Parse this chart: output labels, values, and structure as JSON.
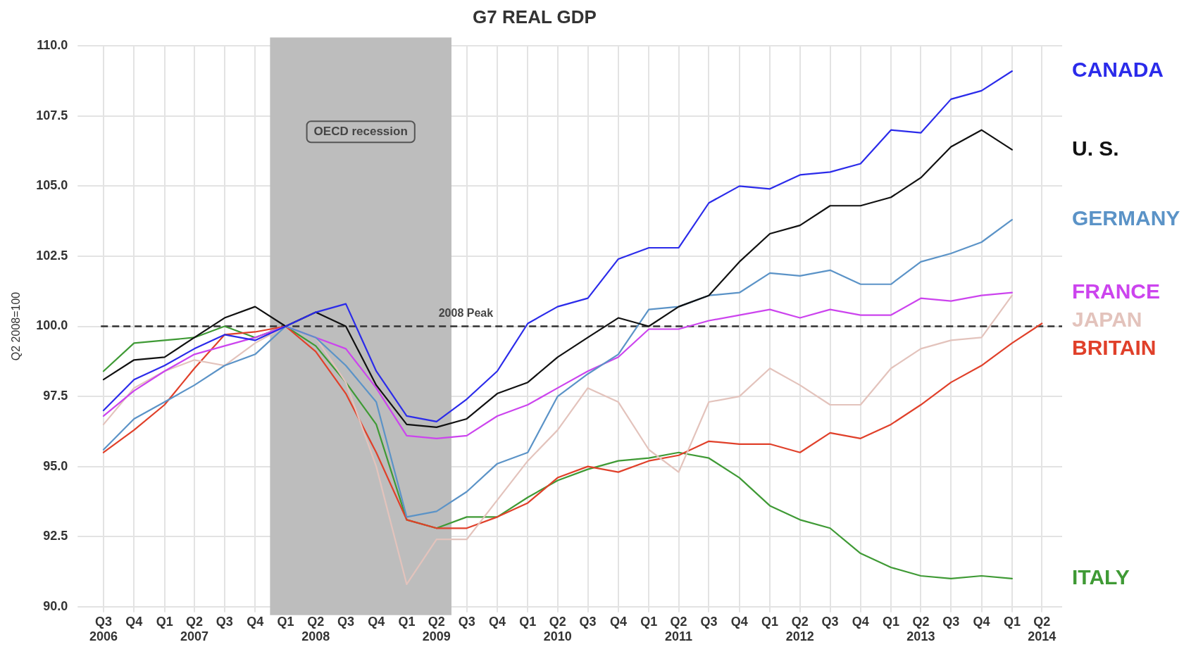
{
  "chart_data": {
    "type": "line",
    "title": "G7 REAL GDP",
    "ylabel": "Q2 2008=100",
    "x": [
      "2006-07",
      "2006-10",
      "2007-01",
      "2007-04",
      "2007-07",
      "2007-10",
      "2008-01",
      "2008-04",
      "2008-07",
      "2008-10",
      "2009-01",
      "2009-04",
      "2009-07",
      "2009-10",
      "2010-01",
      "2010-04",
      "2010-07",
      "2010-10",
      "2011-01",
      "2011-04",
      "2011-07",
      "2011-10",
      "2012-01",
      "2012-04",
      "2012-07",
      "2012-10",
      "2013-01",
      "2013-04",
      "2013-07",
      "2013-10",
      "2014-01",
      "2014-04"
    ],
    "xlim": [
      "2006-05",
      "2014-06"
    ],
    "xticks": [
      {
        "value": "2006-07",
        "label": "Q3\n2006"
      },
      {
        "value": "2006-10",
        "label": "Q4"
      },
      {
        "value": "2007-01",
        "label": "Q1"
      },
      {
        "value": "2007-04",
        "label": "Q2\n2007"
      },
      {
        "value": "2007-07",
        "label": "Q3"
      },
      {
        "value": "2007-10",
        "label": "Q4"
      },
      {
        "value": "2008-01",
        "label": "Q1"
      },
      {
        "value": "2008-04",
        "label": "Q2\n2008"
      },
      {
        "value": "2008-07",
        "label": "Q3"
      },
      {
        "value": "2008-10",
        "label": "Q4"
      },
      {
        "value": "2009-01",
        "label": "Q1"
      },
      {
        "value": "2009-04",
        "label": "Q2\n2009"
      },
      {
        "value": "2009-07",
        "label": "Q3"
      },
      {
        "value": "2009-10",
        "label": "Q4"
      },
      {
        "value": "2010-01",
        "label": "Q1"
      },
      {
        "value": "2010-04",
        "label": "Q2\n2010"
      },
      {
        "value": "2010-07",
        "label": "Q3"
      },
      {
        "value": "2010-10",
        "label": "Q4"
      },
      {
        "value": "2011-01",
        "label": "Q1"
      },
      {
        "value": "2011-04",
        "label": "Q2\n2011"
      },
      {
        "value": "2011-07",
        "label": "Q3"
      },
      {
        "value": "2011-10",
        "label": "Q4"
      },
      {
        "value": "2012-01",
        "label": "Q1"
      },
      {
        "value": "2012-04",
        "label": "Q2\n2012"
      },
      {
        "value": "2012-07",
        "label": "Q3"
      },
      {
        "value": "2012-10",
        "label": "Q4"
      },
      {
        "value": "2013-01",
        "label": "Q1"
      },
      {
        "value": "2013-04",
        "label": "Q2\n2013"
      },
      {
        "value": "2013-07",
        "label": "Q3"
      },
      {
        "value": "2013-10",
        "label": "Q4"
      },
      {
        "value": "2014-01",
        "label": "Q1"
      },
      {
        "value": "2014-04",
        "label": "Q2\n2014"
      }
    ],
    "ylim": [
      90,
      110
    ],
    "yticks": [
      {
        "value": 90,
        "label": "90.0"
      },
      {
        "value": 92.5,
        "label": "92.5"
      },
      {
        "value": 95,
        "label": "95.0"
      },
      {
        "value": 97.5,
        "label": "97.5"
      },
      {
        "value": 100,
        "label": "100.0"
      },
      {
        "value": 102.5,
        "label": "102.5"
      },
      {
        "value": 105,
        "label": "105.0"
      },
      {
        "value": 107.5,
        "label": "107.5"
      },
      {
        "value": 110,
        "label": "110.0"
      }
    ],
    "grid": true,
    "legend": false,
    "marker": "none",
    "line_style": "solid",
    "bands": [
      {
        "axis": "x",
        "from": "2007-11-15",
        "to": "2009-05-16",
        "label": "OECD recession",
        "color": "#bdbdbd"
      }
    ],
    "ref_lines": [
      {
        "axis": "y",
        "value": 100,
        "label": "2008 Peak",
        "color": "#333333",
        "line_style": "dashed"
      }
    ],
    "series": [
      {
        "name": "CANADA",
        "color": "#2b2bea",
        "values": [
          97.0,
          98.1,
          98.6,
          99.2,
          99.7,
          99.5,
          100.0,
          100.5,
          100.8,
          98.4,
          96.8,
          96.6,
          97.4,
          98.4,
          100.1,
          100.7,
          101.0,
          102.4,
          102.8,
          102.8,
          104.4,
          105.0,
          104.9,
          105.4,
          105.5,
          105.8,
          107.0,
          106.9,
          108.1,
          108.4,
          109.1,
          null
        ]
      },
      {
        "name": "U. S.",
        "color": "#111111",
        "values": [
          98.1,
          98.8,
          98.9,
          99.6,
          100.3,
          100.7,
          100.0,
          100.5,
          100.0,
          97.9,
          96.5,
          96.4,
          96.7,
          97.6,
          98.0,
          98.9,
          99.6,
          100.3,
          100.0,
          100.7,
          101.1,
          102.3,
          103.3,
          103.6,
          104.3,
          104.3,
          104.6,
          105.3,
          106.4,
          107.0,
          106.3,
          null
        ]
      },
      {
        "name": "GERMANY",
        "color": "#5b93c7",
        "values": [
          95.6,
          96.7,
          97.3,
          97.9,
          98.6,
          99.0,
          100.0,
          99.6,
          98.6,
          97.3,
          93.2,
          93.4,
          94.1,
          95.1,
          95.5,
          97.5,
          98.3,
          99.0,
          100.6,
          100.7,
          101.1,
          101.2,
          101.9,
          101.8,
          102.0,
          101.5,
          101.5,
          102.3,
          102.6,
          103.0,
          103.8,
          null
        ]
      },
      {
        "name": "FRANCE",
        "color": "#cc44ee",
        "values": [
          96.8,
          97.7,
          98.4,
          99.0,
          99.3,
          99.6,
          100.0,
          99.6,
          99.2,
          97.8,
          96.1,
          96.0,
          96.1,
          96.8,
          97.2,
          97.8,
          98.4,
          98.9,
          99.9,
          99.9,
          100.2,
          100.4,
          100.6,
          100.3,
          100.6,
          100.4,
          100.4,
          101.0,
          100.9,
          101.1,
          101.2,
          null
        ]
      },
      {
        "name": "JAPAN",
        "color": "#e3c3bc",
        "values": [
          96.5,
          97.8,
          98.4,
          98.8,
          98.6,
          99.4,
          100.0,
          99.6,
          98.0,
          95.0,
          90.8,
          92.4,
          92.4,
          93.8,
          95.2,
          96.3,
          97.8,
          97.3,
          95.6,
          94.8,
          97.3,
          97.5,
          98.5,
          97.9,
          97.2,
          97.2,
          98.5,
          99.2,
          99.5,
          99.6,
          101.1,
          null
        ]
      },
      {
        "name": "BRITAIN",
        "color": "#e0402a",
        "values": [
          95.5,
          96.3,
          97.2,
          98.5,
          99.7,
          99.8,
          100.0,
          99.1,
          97.6,
          95.5,
          93.1,
          92.8,
          92.8,
          93.2,
          93.7,
          94.6,
          95.0,
          94.8,
          95.2,
          95.4,
          95.9,
          95.8,
          95.8,
          95.5,
          96.2,
          96.0,
          96.5,
          97.2,
          98.0,
          98.6,
          99.4,
          100.1
        ]
      },
      {
        "name": "ITALY",
        "color": "#3f9a35",
        "values": [
          98.4,
          99.4,
          99.5,
          99.6,
          100.0,
          99.6,
          100.0,
          99.3,
          98.0,
          96.5,
          93.1,
          92.8,
          93.2,
          93.2,
          93.9,
          94.5,
          94.9,
          95.2,
          95.3,
          95.5,
          95.3,
          94.6,
          93.6,
          93.1,
          92.8,
          91.9,
          91.4,
          91.1,
          91.0,
          91.1,
          91.0,
          null
        ]
      }
    ]
  }
}
